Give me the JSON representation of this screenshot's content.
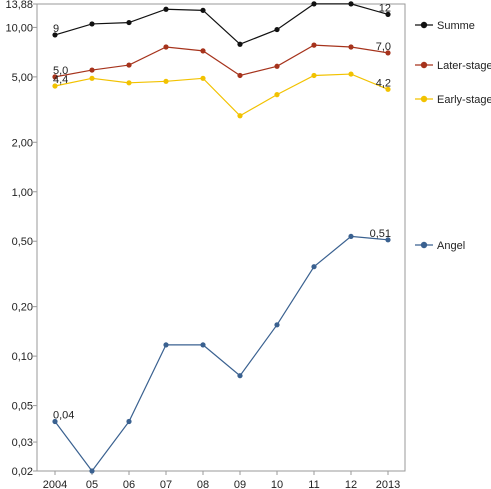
{
  "chart_data": {
    "type": "line",
    "title": "",
    "xlabel": "",
    "ylabel": "",
    "y_scale": "log",
    "ylim": [
      0.02,
      13.88
    ],
    "grid": false,
    "legend_placement": "right",
    "x": [
      "2004",
      "05",
      "06",
      "07",
      "08",
      "09",
      "10",
      "11",
      "12",
      "2013"
    ],
    "y_ticks": [
      {
        "value": 13.88,
        "label": "13,88"
      },
      {
        "value": 10,
        "label": "10,00"
      },
      {
        "value": 5,
        "label": "5,00"
      },
      {
        "value": 2,
        "label": "2,00"
      },
      {
        "value": 1,
        "label": "1,00"
      },
      {
        "value": 0.5,
        "label": "0,50"
      },
      {
        "value": 0.2,
        "label": "0,20"
      },
      {
        "value": 0.1,
        "label": "0,10"
      },
      {
        "value": 0.05,
        "label": "0,05"
      },
      {
        "value": 0.03,
        "label": "0,03"
      },
      {
        "value": 0.02,
        "label": "0,02"
      }
    ],
    "series": [
      {
        "name": "Summe",
        "color": "#111111",
        "values": [
          9.0,
          10.5,
          10.7,
          12.9,
          12.7,
          7.9,
          9.7,
          13.9,
          13.9,
          12.0
        ],
        "labels": [
          {
            "index": 0,
            "text": "9"
          },
          {
            "index": 9,
            "text": "12"
          }
        ]
      },
      {
        "name": "Later-stage",
        "color": "#a6331c",
        "values": [
          5.0,
          5.5,
          5.9,
          7.6,
          7.2,
          5.1,
          5.8,
          7.8,
          7.6,
          7.0
        ],
        "labels": [
          {
            "index": 0,
            "text": "5,0"
          },
          {
            "index": 9,
            "text": "7,0"
          }
        ]
      },
      {
        "name": "Early-stage",
        "color": "#f2c200",
        "values": [
          4.4,
          4.9,
          4.6,
          4.7,
          4.9,
          2.9,
          3.9,
          5.1,
          5.2,
          4.2
        ],
        "labels": [
          {
            "index": 0,
            "text": "4,4"
          },
          {
            "index": 9,
            "text": "4,2"
          }
        ]
      },
      {
        "name": "Angel",
        "color": "#3a6190",
        "values": [
          0.04,
          0.02,
          0.04,
          0.117,
          0.117,
          0.076,
          0.155,
          0.35,
          0.535,
          0.51
        ],
        "labels": [
          {
            "index": 0,
            "text": "0,04"
          },
          {
            "index": 9,
            "text": "0,51"
          }
        ]
      }
    ]
  }
}
